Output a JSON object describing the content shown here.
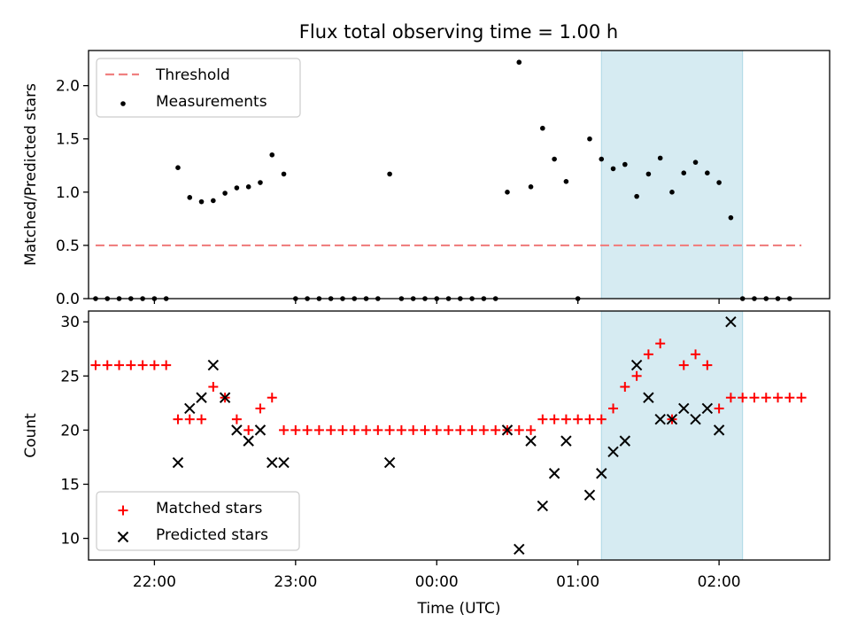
{
  "figure": {
    "title": "Flux total observing time = 1.00 h"
  },
  "chart_data": [
    {
      "type": "scatter",
      "ylabel": "Matched/Predicted stars",
      "xlim": [
        "21:32",
        "02:47"
      ],
      "ylim": [
        0,
        2.33
      ],
      "yticks": [
        0.0,
        0.5,
        1.0,
        1.5,
        2.0
      ],
      "grid": false,
      "legend_position": "upper-left",
      "highlight_span": {
        "start": "01:10",
        "end": "02:10",
        "color": "#add8e6"
      },
      "threshold": {
        "name": "Threshold",
        "value": 0.5,
        "x_start": "21:35",
        "x_end": "02:35",
        "color": "#f08080",
        "style": "dashed"
      },
      "series": [
        {
          "name": "Measurements",
          "marker": "dot",
          "color": "#000000",
          "points": [
            [
              "21:35",
              0
            ],
            [
              "21:40",
              0
            ],
            [
              "21:45",
              0
            ],
            [
              "21:50",
              0
            ],
            [
              "21:55",
              0
            ],
            [
              "22:00",
              0
            ],
            [
              "22:05",
              0
            ],
            [
              "22:10",
              1.23
            ],
            [
              "22:15",
              0.95
            ],
            [
              "22:20",
              0.91
            ],
            [
              "22:25",
              0.92
            ],
            [
              "22:30",
              0.99
            ],
            [
              "22:35",
              1.04
            ],
            [
              "22:40",
              1.05
            ],
            [
              "22:45",
              1.09
            ],
            [
              "22:50",
              1.35
            ],
            [
              "22:55",
              1.17
            ],
            [
              "23:00",
              0
            ],
            [
              "23:05",
              0
            ],
            [
              "23:10",
              0
            ],
            [
              "23:15",
              0
            ],
            [
              "23:20",
              0
            ],
            [
              "23:25",
              0
            ],
            [
              "23:30",
              0
            ],
            [
              "23:35",
              0
            ],
            [
              "23:40",
              1.17
            ],
            [
              "23:45",
              0
            ],
            [
              "23:50",
              0
            ],
            [
              "23:55",
              0
            ],
            [
              "00:00",
              0
            ],
            [
              "00:05",
              0
            ],
            [
              "00:10",
              0
            ],
            [
              "00:15",
              0
            ],
            [
              "00:20",
              0
            ],
            [
              "00:25",
              0
            ],
            [
              "00:30",
              1.0
            ],
            [
              "00:35",
              2.22
            ],
            [
              "00:40",
              1.05
            ],
            [
              "00:45",
              1.6
            ],
            [
              "00:50",
              1.31
            ],
            [
              "00:55",
              1.1
            ],
            [
              "01:00",
              0
            ],
            [
              "01:05",
              1.5
            ],
            [
              "01:10",
              1.31
            ],
            [
              "01:15",
              1.22
            ],
            [
              "01:20",
              1.26
            ],
            [
              "01:25",
              0.96
            ],
            [
              "01:30",
              1.17
            ],
            [
              "01:35",
              1.32
            ],
            [
              "01:40",
              1.0
            ],
            [
              "01:45",
              1.18
            ],
            [
              "01:50",
              1.28
            ],
            [
              "01:55",
              1.18
            ],
            [
              "02:00",
              1.09
            ],
            [
              "02:05",
              0.76
            ],
            [
              "02:10",
              0
            ],
            [
              "02:15",
              0
            ],
            [
              "02:20",
              0
            ],
            [
              "02:25",
              0
            ],
            [
              "02:30",
              0
            ]
          ]
        }
      ]
    },
    {
      "type": "scatter",
      "xlabel": "Time (UTC)",
      "ylabel": "Count",
      "xlim": [
        "21:32",
        "02:47"
      ],
      "ylim": [
        8,
        31
      ],
      "yticks": [
        10,
        15,
        20,
        25,
        30
      ],
      "xticks": [
        "22:00",
        "23:00",
        "00:00",
        "01:00",
        "02:00"
      ],
      "grid": false,
      "legend_position": "lower-left",
      "highlight_span": {
        "start": "01:10",
        "end": "02:10",
        "color": "#add8e6"
      },
      "series": [
        {
          "name": "Matched stars",
          "marker": "plus",
          "color": "#ff0000",
          "points": [
            [
              "21:35",
              26
            ],
            [
              "21:40",
              26
            ],
            [
              "21:45",
              26
            ],
            [
              "21:50",
              26
            ],
            [
              "21:55",
              26
            ],
            [
              "22:00",
              26
            ],
            [
              "22:05",
              26
            ],
            [
              "22:10",
              21
            ],
            [
              "22:15",
              21
            ],
            [
              "22:20",
              21
            ],
            [
              "22:25",
              24
            ],
            [
              "22:30",
              23
            ],
            [
              "22:35",
              21
            ],
            [
              "22:40",
              20
            ],
            [
              "22:45",
              22
            ],
            [
              "22:50",
              23
            ],
            [
              "22:55",
              20
            ],
            [
              "23:00",
              20
            ],
            [
              "23:05",
              20
            ],
            [
              "23:10",
              20
            ],
            [
              "23:15",
              20
            ],
            [
              "23:20",
              20
            ],
            [
              "23:25",
              20
            ],
            [
              "23:30",
              20
            ],
            [
              "23:35",
              20
            ],
            [
              "23:40",
              20
            ],
            [
              "23:45",
              20
            ],
            [
              "23:50",
              20
            ],
            [
              "23:55",
              20
            ],
            [
              "00:00",
              20
            ],
            [
              "00:05",
              20
            ],
            [
              "00:10",
              20
            ],
            [
              "00:15",
              20
            ],
            [
              "00:20",
              20
            ],
            [
              "00:25",
              20
            ],
            [
              "00:30",
              20
            ],
            [
              "00:35",
              20
            ],
            [
              "00:40",
              20
            ],
            [
              "00:45",
              21
            ],
            [
              "00:50",
              21
            ],
            [
              "00:55",
              21
            ],
            [
              "01:00",
              21
            ],
            [
              "01:05",
              21
            ],
            [
              "01:10",
              21
            ],
            [
              "01:15",
              22
            ],
            [
              "01:20",
              24
            ],
            [
              "01:25",
              25
            ],
            [
              "01:30",
              27
            ],
            [
              "01:35",
              28
            ],
            [
              "01:40",
              21
            ],
            [
              "01:45",
              26
            ],
            [
              "01:50",
              27
            ],
            [
              "01:55",
              26
            ],
            [
              "02:00",
              22
            ],
            [
              "02:05",
              23
            ],
            [
              "02:10",
              23
            ],
            [
              "02:15",
              23
            ],
            [
              "02:20",
              23
            ],
            [
              "02:25",
              23
            ],
            [
              "02:30",
              23
            ],
            [
              "02:35",
              23
            ]
          ]
        },
        {
          "name": "Predicted stars",
          "marker": "x",
          "color": "#000000",
          "points": [
            [
              "22:10",
              17
            ],
            [
              "22:15",
              22
            ],
            [
              "22:20",
              23
            ],
            [
              "22:25",
              26
            ],
            [
              "22:30",
              23
            ],
            [
              "22:35",
              20
            ],
            [
              "22:40",
              19
            ],
            [
              "22:45",
              20
            ],
            [
              "22:50",
              17
            ],
            [
              "22:55",
              17
            ],
            [
              "23:40",
              17
            ],
            [
              "00:30",
              20
            ],
            [
              "00:35",
              9
            ],
            [
              "00:40",
              19
            ],
            [
              "00:45",
              13
            ],
            [
              "00:50",
              16
            ],
            [
              "00:55",
              19
            ],
            [
              "01:05",
              14
            ],
            [
              "01:10",
              16
            ],
            [
              "01:15",
              18
            ],
            [
              "01:20",
              19
            ],
            [
              "01:25",
              26
            ],
            [
              "01:30",
              23
            ],
            [
              "01:35",
              21
            ],
            [
              "01:40",
              21
            ],
            [
              "01:45",
              22
            ],
            [
              "01:50",
              21
            ],
            [
              "01:55",
              22
            ],
            [
              "02:00",
              20
            ],
            [
              "02:05",
              30
            ]
          ]
        }
      ]
    }
  ]
}
